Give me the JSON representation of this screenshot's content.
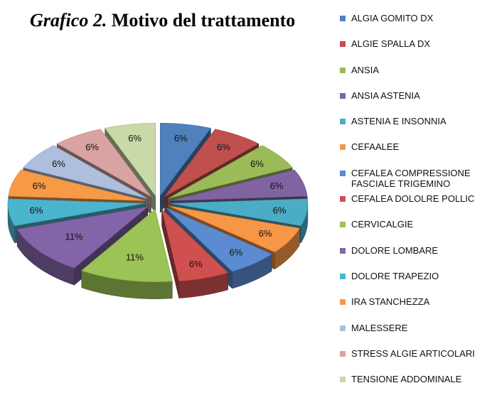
{
  "title": {
    "italic": "Grafico 2.",
    "rest": "Motivo del trattamento"
  },
  "chart_data": {
    "type": "pie",
    "title": "Grafico 2. Motivo del trattamento",
    "legend_position": "right",
    "exploded": true,
    "three_d": true,
    "slices": [
      {
        "label": "ALGIA GOMITO DX",
        "value": 6,
        "display": "6%",
        "color": "#4f81bd"
      },
      {
        "label": "ALGIE SPALLA DX",
        "value": 6,
        "display": "6%",
        "color": "#c0504d"
      },
      {
        "label": "ANSIA",
        "value": 6,
        "display": "6%",
        "color": "#9bbb59"
      },
      {
        "label": "ANSIA ASTENIA",
        "value": 6,
        "display": "6%",
        "color": "#8064a2"
      },
      {
        "label": "ASTENIA E INSONNIA",
        "value": 6,
        "display": "6%",
        "color": "#4bacc6"
      },
      {
        "label": "CEFAALEE",
        "value": 6,
        "display": "6%",
        "color": "#f79646"
      },
      {
        "label": "CEFALEA COMPRESSIONE FASCIALE TRIGEMINO",
        "value": 6,
        "display": "6%",
        "color": "#5b8bd0"
      },
      {
        "label": "CEFALEA DOLOLRE POLLIC",
        "value": 6,
        "display": "6%",
        "color": "#d0504f"
      },
      {
        "label": "CERVICALGIE",
        "value": 11,
        "display": "11%",
        "color": "#9bc355"
      },
      {
        "label": "DOLORE LOMBARE",
        "value": 11,
        "display": "11%",
        "color": "#8364a8"
      },
      {
        "label": "DOLORE TRAPEZIO",
        "value": 6,
        "display": "6%",
        "color": "#4bb5cf"
      },
      {
        "label": "IRA STANCHEZZA",
        "value": 6,
        "display": "6%",
        "color": "#f79a46"
      },
      {
        "label": "MALESSERE",
        "value": 6,
        "display": "6%",
        "color": "#aebfdd"
      },
      {
        "label": "STRESS ALGIE ARTICOLARI",
        "value": 6,
        "display": "6%",
        "color": "#d8a3a2"
      },
      {
        "label": "TENSIONE ADDOMINALE",
        "value": 6,
        "display": "6%",
        "color": "#c9d9a7"
      }
    ]
  }
}
